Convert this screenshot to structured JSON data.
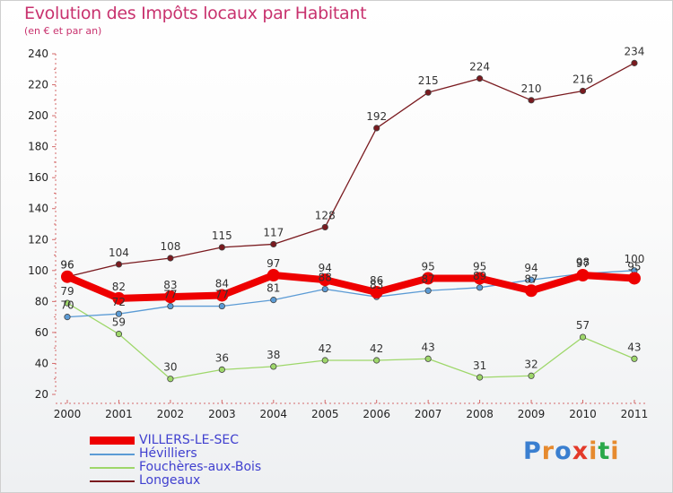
{
  "title": "Evolution des Impôts locaux par Habitant",
  "subtitle": "(en € et par an)",
  "brand": {
    "text": "Proxiti",
    "colors": [
      "#3a7fd0",
      "#e68a2e",
      "#3a7fd0",
      "#e33a2a",
      "#e68a2e",
      "#2aa84a",
      "#e68a2e"
    ]
  },
  "chart_data": {
    "type": "line",
    "title": "Evolution des Impôts locaux par Habitant",
    "subtitle": "(en € et par an)",
    "xlabel": "",
    "ylabel": "",
    "x": [
      "2000",
      "2001",
      "2002",
      "2003",
      "2004",
      "2005",
      "2006",
      "2007",
      "2008",
      "2009",
      "2010",
      "2011"
    ],
    "ylim": [
      20,
      240
    ],
    "yticks": [
      20,
      40,
      60,
      80,
      100,
      120,
      140,
      160,
      180,
      200,
      220,
      240
    ],
    "grid": false,
    "legend_position": "bottom-left",
    "series": [
      {
        "name": "Longeaux",
        "color": "#7a1a1f",
        "values": [
          96,
          104,
          108,
          115,
          117,
          128,
          192,
          215,
          224,
          210,
          216,
          234
        ]
      },
      {
        "name": "Fouchères-aux-Bois",
        "color": "#9ed76a",
        "values": [
          79,
          59,
          30,
          36,
          38,
          42,
          42,
          43,
          31,
          32,
          57,
          43
        ]
      },
      {
        "name": "Hévilliers",
        "color": "#5b9bd5",
        "values": [
          70,
          72,
          77,
          77,
          81,
          88,
          83,
          87,
          89,
          94,
          98,
          100
        ]
      },
      {
        "name": "VILLERS-LE-SEC",
        "color": "#ee0000",
        "values": [
          96,
          82,
          83,
          84,
          97,
          94,
          86,
          95,
          95,
          87,
          97,
          95
        ]
      }
    ],
    "legend_order": [
      "VILLERS-LE-SEC",
      "Hévilliers",
      "Fouchères-aux-Bois",
      "Longeaux"
    ]
  }
}
